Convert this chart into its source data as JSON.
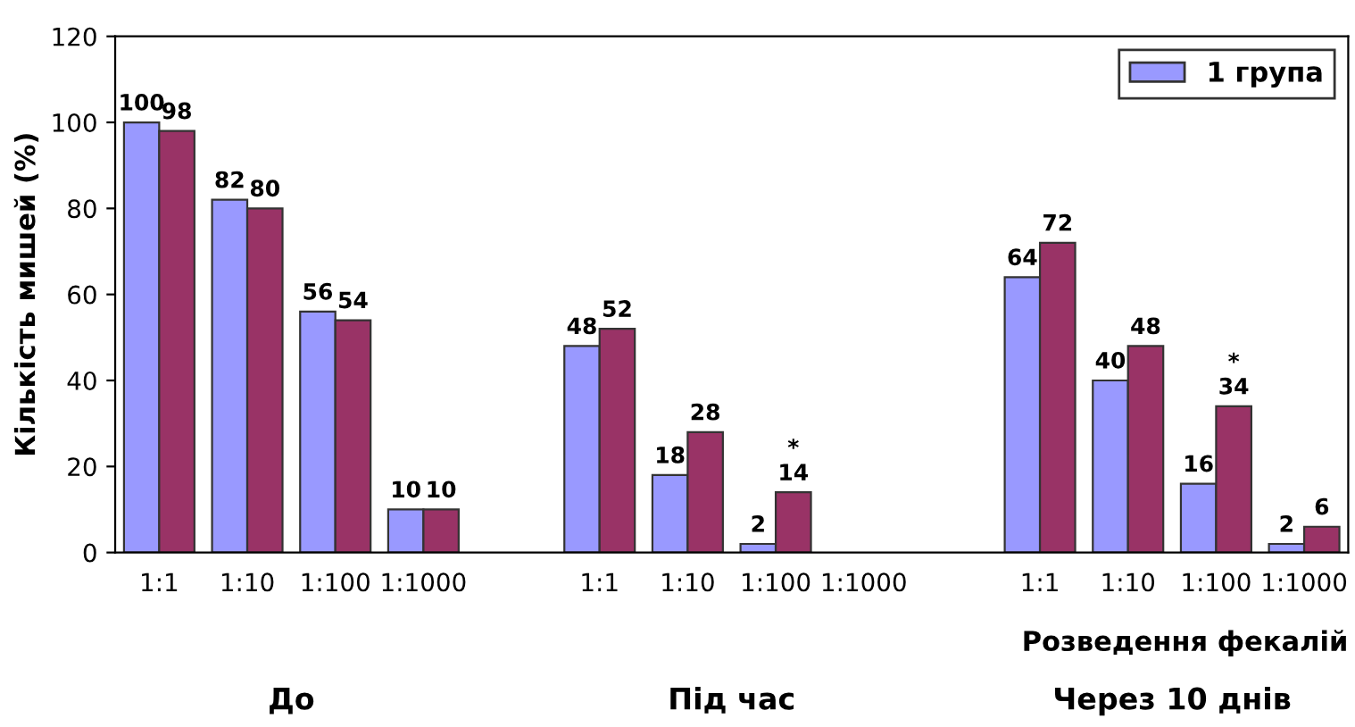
{
  "chart_data": {
    "type": "bar",
    "ylabel": "Кількість мишей (%)",
    "xlabel": "Розведення фекалій",
    "categories": [
      "1:1",
      "1:10",
      "1:100",
      "1:1000",
      null,
      "1:1",
      "1:10",
      "1:100",
      "1:1000",
      null,
      "1:1",
      "1:10",
      "1:100",
      "1:1000"
    ],
    "series": [
      {
        "name": "1 група",
        "color": "#9999ff",
        "values": [
          100,
          82,
          56,
          10,
          null,
          48,
          18,
          2,
          null,
          null,
          64,
          40,
          16,
          2
        ],
        "value_labels": [
          "100",
          "82",
          "56",
          "10",
          null,
          "48",
          "18",
          "2",
          null,
          null,
          "64",
          "40",
          "16",
          "2"
        ]
      },
      {
        "color": "#993366",
        "values": [
          98,
          80,
          54,
          10,
          null,
          52,
          28,
          14,
          null,
          null,
          72,
          48,
          34,
          6
        ],
        "value_labels": [
          "98",
          "80",
          "54",
          "10",
          null,
          "52",
          "28",
          "*\n14",
          null,
          null,
          "72",
          "48",
          "*\n34",
          "6"
        ]
      }
    ],
    "ylim": [
      0,
      120
    ],
    "yticks": [
      0,
      20,
      40,
      60,
      80,
      100,
      120
    ],
    "grid": false,
    "legend": "top right",
    "annotations": [
      "До",
      "Під час",
      "Через 10 днів"
    ]
  }
}
